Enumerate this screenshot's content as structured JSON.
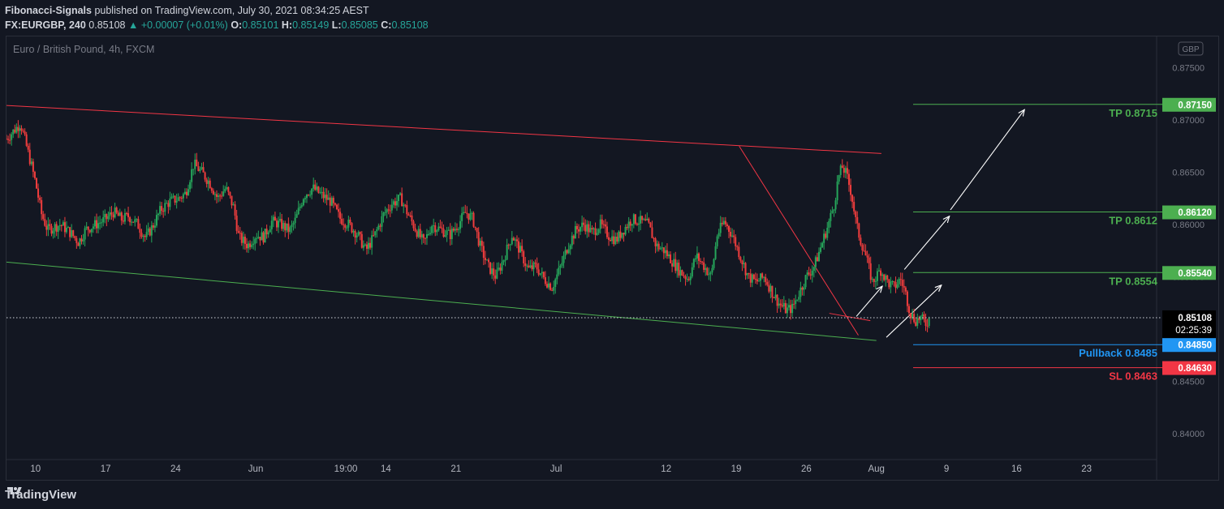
{
  "header": {
    "author": "Fibonacci-Signals",
    "published": "published on TradingView.com, July 30, 2021 08:34:25 AEST",
    "symbol": "FX:EURGBP, 240",
    "last": "0.85108",
    "change": "▲ +0.00007 (+0.01%)",
    "o_label": "O:",
    "o": "0.85101",
    "h_label": "H:",
    "h": "0.85149",
    "l_label": "L:",
    "l": "0.85085",
    "c_label": "C:",
    "c": "0.85108"
  },
  "footer": {
    "brand": "TradingView"
  },
  "chart_data": {
    "type": "candlestick",
    "instrument_label": "Euro / British Pound, 4h, FXCM",
    "currency_badge": "GBP",
    "ylim": [
      0.8375,
      0.878
    ],
    "y_ticks": [
      "0.87500",
      "0.87000",
      "0.86500",
      "0.86000",
      "0.85500",
      "0.85000",
      "0.84500",
      "0.84000"
    ],
    "y_tick_values": [
      0.875,
      0.87,
      0.865,
      0.86,
      0.855,
      0.85,
      0.845,
      0.84
    ],
    "x_ticks": [
      "10",
      "17",
      "24",
      "Jun",
      "19:00",
      "14",
      "21",
      "Jul",
      "12",
      "19",
      "26",
      "Aug",
      "9",
      "16",
      "23"
    ],
    "x_tick_days": [
      0,
      7,
      14,
      22,
      31,
      35,
      42,
      52,
      63,
      70,
      77,
      84,
      91,
      98,
      105
    ],
    "x_range_days": [
      -2.9,
      112
    ],
    "current_price": {
      "value": 0.85108,
      "label": "0.85108",
      "countdown": "02:25:39"
    },
    "levels": [
      {
        "label": "TP 0.8715",
        "badge": "0.87150",
        "value": 0.8715,
        "color": "#4caf50"
      },
      {
        "label": "TP 0.8612",
        "badge": "0.86120",
        "value": 0.8612,
        "color": "#4caf50"
      },
      {
        "label": "TP 0.8554",
        "badge": "0.85540",
        "value": 0.8554,
        "color": "#4caf50"
      },
      {
        "label": "Pullback 0.8485",
        "badge": "0.84850",
        "value": 0.8485,
        "color": "#2196f3"
      },
      {
        "label": "SL 0.8463",
        "badge": "0.84630",
        "value": 0.8463,
        "color": "#f23645"
      }
    ],
    "channel_upper": {
      "from": [
        -2.9,
        0.8714
      ],
      "to": [
        84.5,
        0.8668
      ],
      "color": "#f23645"
    },
    "channel_lower": {
      "from": [
        -2.9,
        0.8564
      ],
      "to": [
        84.0,
        0.8489
      ],
      "color": "#4caf50"
    },
    "descending_trendline": {
      "from": [
        70.3,
        0.8675
      ],
      "to": [
        82.2,
        0.8494
      ],
      "color": "#f23645"
    },
    "wedge_upper": {
      "from": [
        79.3,
        0.8515
      ],
      "to": [
        83.4,
        0.8508
      ],
      "color": "#f23645"
    },
    "projection_arrows": [
      [
        [
          82.0,
          0.8512
        ],
        [
          84.6,
          0.8541
        ]
      ],
      [
        [
          85.0,
          0.8492
        ],
        [
          90.5,
          0.8542
        ]
      ],
      [
        [
          86.8,
          0.8557
        ],
        [
          91.3,
          0.8608
        ]
      ],
      [
        [
          91.4,
          0.8614
        ],
        [
          98.8,
          0.871
        ]
      ]
    ],
    "price_path": [
      [
        -2.9,
        0.8682
      ],
      [
        -1.5,
        0.8697
      ],
      [
        -0.5,
        0.866
      ],
      [
        0,
        0.864
      ],
      [
        0.6,
        0.861
      ],
      [
        1.2,
        0.8595
      ],
      [
        2.5,
        0.86
      ],
      [
        3.5,
        0.8592
      ],
      [
        4.3,
        0.8583
      ],
      [
        5.0,
        0.8595
      ],
      [
        6.0,
        0.86
      ],
      [
        7.0,
        0.8605
      ],
      [
        7.8,
        0.8612
      ],
      [
        8.6,
        0.8605
      ],
      [
        9.3,
        0.8608
      ],
      [
        10.2,
        0.86
      ],
      [
        11.0,
        0.8587
      ],
      [
        11.8,
        0.86
      ],
      [
        12.5,
        0.8614
      ],
      [
        13.4,
        0.8622
      ],
      [
        14.3,
        0.8625
      ],
      [
        15.0,
        0.863
      ],
      [
        15.8,
        0.8658
      ],
      [
        16.6,
        0.865
      ],
      [
        17.4,
        0.864
      ],
      [
        18.2,
        0.8625
      ],
      [
        19.0,
        0.8635
      ],
      [
        19.8,
        0.8616
      ],
      [
        20.3,
        0.8588
      ],
      [
        21.2,
        0.858
      ],
      [
        22.0,
        0.859
      ],
      [
        22.8,
        0.8588
      ],
      [
        23.6,
        0.8603
      ],
      [
        24.5,
        0.86
      ],
      [
        25.4,
        0.8594
      ],
      [
        26.0,
        0.8605
      ],
      [
        26.8,
        0.8628
      ],
      [
        27.7,
        0.8635
      ],
      [
        28.6,
        0.8628
      ],
      [
        29.5,
        0.8622
      ],
      [
        30.4,
        0.8606
      ],
      [
        31.3,
        0.86
      ],
      [
        32.2,
        0.859
      ],
      [
        33.0,
        0.8575
      ],
      [
        33.9,
        0.859
      ],
      [
        34.8,
        0.861
      ],
      [
        35.6,
        0.862
      ],
      [
        36.5,
        0.8625
      ],
      [
        37.2,
        0.861
      ],
      [
        38.0,
        0.8595
      ],
      [
        38.8,
        0.8582
      ],
      [
        39.6,
        0.86
      ],
      [
        40.5,
        0.8595
      ],
      [
        41.4,
        0.859
      ],
      [
        42.2,
        0.86
      ],
      [
        43.0,
        0.8612
      ],
      [
        43.7,
        0.8605
      ],
      [
        44.4,
        0.858
      ],
      [
        45.2,
        0.856
      ],
      [
        46.0,
        0.855
      ],
      [
        46.8,
        0.8568
      ],
      [
        47.6,
        0.859
      ],
      [
        48.4,
        0.8575
      ],
      [
        49.2,
        0.8557
      ],
      [
        50.0,
        0.856
      ],
      [
        50.8,
        0.8548
      ],
      [
        51.6,
        0.854
      ],
      [
        52.4,
        0.8558
      ],
      [
        53.2,
        0.858
      ],
      [
        54.0,
        0.8595
      ],
      [
        54.8,
        0.86
      ],
      [
        55.6,
        0.8592
      ],
      [
        56.4,
        0.86
      ],
      [
        57.2,
        0.859
      ],
      [
        58.0,
        0.8585
      ],
      [
        58.8,
        0.8596
      ],
      [
        59.6,
        0.8605
      ],
      [
        60.4,
        0.8603
      ],
      [
        61.2,
        0.86
      ],
      [
        62.0,
        0.858
      ],
      [
        62.8,
        0.8575
      ],
      [
        63.6,
        0.8565
      ],
      [
        64.4,
        0.8555
      ],
      [
        65.2,
        0.8548
      ],
      [
        66.0,
        0.857
      ],
      [
        66.8,
        0.856
      ],
      [
        67.5,
        0.855
      ],
      [
        68.1,
        0.859
      ],
      [
        68.8,
        0.8603
      ],
      [
        69.6,
        0.859
      ],
      [
        70.4,
        0.857
      ],
      [
        71.2,
        0.855
      ],
      [
        72.0,
        0.8545
      ],
      [
        72.8,
        0.855
      ],
      [
        73.6,
        0.8535
      ],
      [
        74.3,
        0.8524
      ],
      [
        75.0,
        0.8518
      ],
      [
        75.6,
        0.852
      ],
      [
        76.3,
        0.8535
      ],
      [
        77.0,
        0.855
      ],
      [
        77.8,
        0.856
      ],
      [
        78.5,
        0.858
      ],
      [
        79.2,
        0.86
      ],
      [
        79.8,
        0.862
      ],
      [
        80.2,
        0.8645
      ],
      [
        80.6,
        0.8655
      ],
      [
        81.0,
        0.8648
      ],
      [
        81.5,
        0.863
      ],
      [
        82.0,
        0.86
      ],
      [
        82.4,
        0.8585
      ],
      [
        82.8,
        0.8575
      ],
      [
        83.2,
        0.856
      ],
      [
        83.6,
        0.8545
      ],
      [
        84.0,
        0.855
      ],
      [
        84.4,
        0.8557
      ],
      [
        84.8,
        0.855
      ],
      [
        85.3,
        0.8543
      ],
      [
        85.8,
        0.854
      ],
      [
        86.4,
        0.8548
      ],
      [
        86.9,
        0.8535
      ],
      [
        87.4,
        0.8515
      ],
      [
        87.9,
        0.8508
      ],
      [
        88.4,
        0.8511
      ],
      [
        88.9,
        0.8505
      ],
      [
        89.4,
        0.8511
      ]
    ]
  }
}
